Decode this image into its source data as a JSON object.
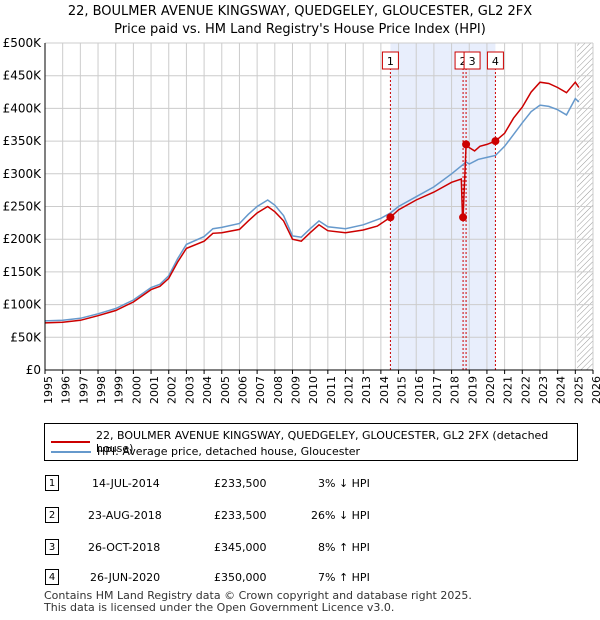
{
  "title_line1": "22, BOULMER AVENUE KINGSWAY, QUEDGELEY, GLOUCESTER, GL2 2FX",
  "title_line2": "Price paid vs. HM Land Registry's House Price Index (HPI)",
  "colors": {
    "property": "#cc0000",
    "hpi": "#6699cc",
    "shade": "#e8eefc",
    "grid": "#cccccc"
  },
  "chart_data": {
    "type": "line",
    "x_range": [
      1995,
      2026
    ],
    "ylim": [
      0,
      500000
    ],
    "y_ticks": [
      {
        "value": 0,
        "label": "£0"
      },
      {
        "value": 50000,
        "label": "£50K"
      },
      {
        "value": 100000,
        "label": "£100K"
      },
      {
        "value": 150000,
        "label": "£150K"
      },
      {
        "value": 200000,
        "label": "£200K"
      },
      {
        "value": 250000,
        "label": "£250K"
      },
      {
        "value": 300000,
        "label": "£300K"
      },
      {
        "value": 350000,
        "label": "£350K"
      },
      {
        "value": 400000,
        "label": "£400K"
      },
      {
        "value": 450000,
        "label": "£450K"
      },
      {
        "value": 500000,
        "label": "£500K"
      }
    ],
    "x_ticks": [
      "1995",
      "1996",
      "1997",
      "1998",
      "1999",
      "2000",
      "2001",
      "2002",
      "2003",
      "2004",
      "2005",
      "2006",
      "2007",
      "2008",
      "2009",
      "2010",
      "2011",
      "2012",
      "2013",
      "2014",
      "2015",
      "2016",
      "2017",
      "2018",
      "2019",
      "2020",
      "2021",
      "2022",
      "2023",
      "2024",
      "2025",
      "2026"
    ],
    "shaded_span": [
      2014.54,
      2020.48
    ],
    "hatch_from": 2025.1,
    "series": [
      {
        "name": "22, BOULMER AVENUE KINGSWAY, QUEDGELEY, GLOUCESTER, GL2 2FX (detached house)",
        "color": "#cc0000",
        "points": [
          [
            1995.0,
            72000
          ],
          [
            1996.0,
            73000
          ],
          [
            1997.0,
            76000
          ],
          [
            1998.0,
            83000
          ],
          [
            1999.0,
            91000
          ],
          [
            2000.0,
            104000
          ],
          [
            2001.0,
            123000
          ],
          [
            2001.5,
            128000
          ],
          [
            2002.0,
            140000
          ],
          [
            2002.5,
            165000
          ],
          [
            2003.0,
            186000
          ],
          [
            2004.0,
            197000
          ],
          [
            2004.5,
            209000
          ],
          [
            2005.0,
            210000
          ],
          [
            2006.0,
            215000
          ],
          [
            2006.5,
            228000
          ],
          [
            2007.0,
            240000
          ],
          [
            2007.6,
            250000
          ],
          [
            2008.0,
            242000
          ],
          [
            2008.5,
            228000
          ],
          [
            2009.0,
            200000
          ],
          [
            2009.5,
            197000
          ],
          [
            2010.0,
            210000
          ],
          [
            2010.5,
            222000
          ],
          [
            2011.0,
            213000
          ],
          [
            2012.0,
            210000
          ],
          [
            2013.0,
            214000
          ],
          [
            2013.8,
            220000
          ],
          [
            2014.54,
            233500
          ],
          [
            2015.0,
            245000
          ],
          [
            2016.0,
            260000
          ],
          [
            2017.0,
            272000
          ],
          [
            2018.0,
            287000
          ],
          [
            2018.55,
            292000
          ],
          [
            2018.62,
            233500
          ],
          [
            2018.65,
            233500
          ],
          [
            2018.82,
            345000
          ],
          [
            2019.0,
            340000
          ],
          [
            2019.3,
            335000
          ],
          [
            2019.6,
            342000
          ],
          [
            2020.0,
            345000
          ],
          [
            2020.48,
            350000
          ],
          [
            2021.0,
            362000
          ],
          [
            2021.5,
            385000
          ],
          [
            2022.0,
            402000
          ],
          [
            2022.5,
            425000
          ],
          [
            2023.0,
            440000
          ],
          [
            2023.5,
            438000
          ],
          [
            2024.0,
            432000
          ],
          [
            2024.5,
            424000
          ],
          [
            2025.0,
            440000
          ],
          [
            2025.2,
            432000
          ]
        ]
      },
      {
        "name": "HPI: Average price, detached house, Gloucester",
        "color": "#6699cc",
        "points": [
          [
            1995.0,
            75000
          ],
          [
            1996.0,
            76000
          ],
          [
            1997.0,
            79000
          ],
          [
            1998.0,
            86000
          ],
          [
            1999.0,
            94000
          ],
          [
            2000.0,
            107000
          ],
          [
            2001.0,
            126000
          ],
          [
            2001.5,
            131000
          ],
          [
            2002.0,
            144000
          ],
          [
            2002.5,
            170000
          ],
          [
            2003.0,
            192000
          ],
          [
            2004.0,
            204000
          ],
          [
            2004.5,
            216000
          ],
          [
            2005.0,
            218000
          ],
          [
            2006.0,
            224000
          ],
          [
            2006.5,
            238000
          ],
          [
            2007.0,
            250000
          ],
          [
            2007.6,
            260000
          ],
          [
            2008.0,
            252000
          ],
          [
            2008.5,
            236000
          ],
          [
            2009.0,
            205000
          ],
          [
            2009.5,
            203000
          ],
          [
            2010.0,
            216000
          ],
          [
            2010.5,
            228000
          ],
          [
            2011.0,
            219000
          ],
          [
            2012.0,
            216000
          ],
          [
            2013.0,
            222000
          ],
          [
            2014.0,
            232000
          ],
          [
            2014.54,
            240000
          ],
          [
            2015.0,
            250000
          ],
          [
            2016.0,
            265000
          ],
          [
            2017.0,
            280000
          ],
          [
            2018.0,
            300000
          ],
          [
            2018.82,
            318000
          ],
          [
            2019.0,
            315000
          ],
          [
            2019.5,
            322000
          ],
          [
            2020.0,
            325000
          ],
          [
            2020.48,
            328000
          ],
          [
            2021.0,
            342000
          ],
          [
            2021.5,
            360000
          ],
          [
            2022.0,
            378000
          ],
          [
            2022.5,
            395000
          ],
          [
            2023.0,
            405000
          ],
          [
            2023.5,
            403000
          ],
          [
            2024.0,
            398000
          ],
          [
            2024.5,
            390000
          ],
          [
            2025.0,
            415000
          ],
          [
            2025.2,
            410000
          ]
        ]
      }
    ],
    "markers": [
      {
        "label": "1",
        "x": 2014.54,
        "y": 233500
      },
      {
        "label": "2",
        "x": 2018.65,
        "y": 233500
      },
      {
        "label": "3",
        "x": 2018.82,
        "y": 345000
      },
      {
        "label": "4",
        "x": 2020.48,
        "y": 350000
      }
    ]
  },
  "legend": {
    "property_label": "22, BOULMER AVENUE KINGSWAY, QUEDGELEY, GLOUCESTER, GL2 2FX (detached house)",
    "hpi_label": "HPI: Average price, detached house, Gloucester"
  },
  "transactions": [
    {
      "num": "1",
      "date": "14-JUL-2014",
      "price": "£233,500",
      "hpi": "3% ↓ HPI"
    },
    {
      "num": "2",
      "date": "23-AUG-2018",
      "price": "£233,500",
      "hpi": "26% ↓ HPI"
    },
    {
      "num": "3",
      "date": "26-OCT-2018",
      "price": "£345,000",
      "hpi": "8% ↑ HPI"
    },
    {
      "num": "4",
      "date": "26-JUN-2020",
      "price": "£350,000",
      "hpi": "7% ↑ HPI"
    }
  ],
  "footer_line1": "Contains HM Land Registry data © Crown copyright and database right 2025.",
  "footer_line2": "This data is licensed under the Open Government Licence v3.0."
}
